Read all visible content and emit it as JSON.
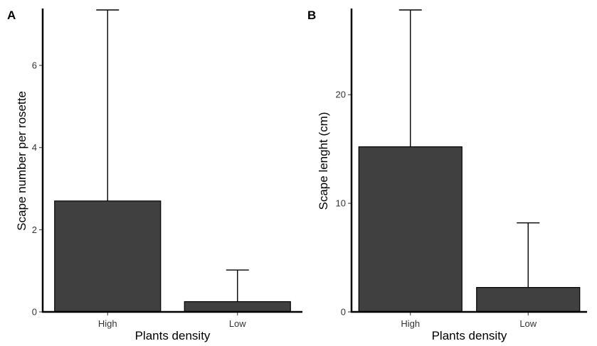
{
  "chart_data": [
    {
      "type": "bar",
      "panel": "A",
      "categories": [
        "High",
        "Low"
      ],
      "values": [
        2.7,
        0.25
      ],
      "error_upper": [
        7.35,
        1.02
      ],
      "xlabel": "Plants density",
      "ylabel": "Scape number per rosette",
      "ylim": [
        0,
        7.35
      ],
      "yticks": [
        "0",
        "2",
        "4",
        "6"
      ],
      "ytick_values": [
        0,
        2,
        4,
        6
      ],
      "colors": {
        "bar": "#404040"
      },
      "grid": false
    },
    {
      "type": "bar",
      "panel": "B",
      "categories": [
        "High",
        "Low"
      ],
      "values": [
        15.2,
        2.25
      ],
      "error_upper": [
        27.8,
        8.2
      ],
      "xlabel": "Plants density",
      "ylabel": "Scape lenght (cm)",
      "ylim": [
        0,
        27.8
      ],
      "yticks": [
        "0",
        "10",
        "20"
      ],
      "ytick_values": [
        0,
        10,
        20
      ],
      "colors": {
        "bar": "#404040"
      },
      "grid": false
    }
  ]
}
